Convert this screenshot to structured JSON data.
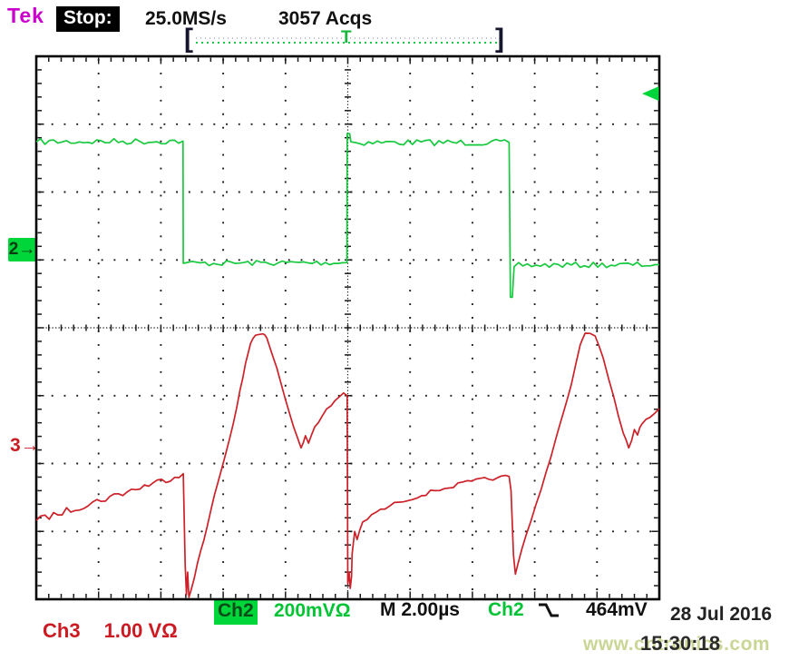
{
  "header": {
    "brand": "Tek",
    "acq_state": "Stop:",
    "sample_rate": "25.0MS/s",
    "acquisitions": "3057 Acqs"
  },
  "record_bar": {
    "left_bracket": "[",
    "right_bracket": "]",
    "trigger_mark": "T"
  },
  "markers": {
    "ch2_ground_label": "2→",
    "ch3_ground_label": "3→",
    "trigger_box_label": "T"
  },
  "readouts": {
    "ch3_channel": "Ch3",
    "ch3_scale": "1.00 VΩ",
    "ch2_channel": "Ch2",
    "ch2_scale": "200mVΩ",
    "timebase": "M 2.00µs",
    "trigger_source": "Ch2",
    "trigger_level": "464mV"
  },
  "footer": {
    "date": "28 Jul 2016",
    "time": "15:30:18",
    "watermark": "www.cntronics.com"
  },
  "colors": {
    "green": "#17c93e",
    "green_box": "#00d53a",
    "red": "#cc2128",
    "magenta": "#cc00cc",
    "grid": "#1a1a1a",
    "watermark": "#c9d695"
  },
  "chart_data": {
    "type": "line",
    "title": "Tektronix oscilloscope capture, stopped acquisition",
    "x_divisions": 10,
    "y_divisions": 8,
    "time_per_div": "2.00µs",
    "legend_position": "bottom",
    "grid": "dotted",
    "series": [
      {
        "name": "Ch2",
        "scale_per_div": "200mV",
        "color": "#17c93e",
        "ground_marker_div": 2.86,
        "description": "square wave, ~5.2µs half period, falls at 2.36 div, rises at 5.0 div (trigger), falls at 7.6 div",
        "segments": [
          {
            "n": 0.045,
            "pts": [
              [
                0,
                1.26
              ],
              [
                2.355,
                1.25
              ]
            ]
          },
          {
            "n": 0,
            "pts": [
              [
                2.355,
                1.25
              ],
              [
                2.36,
                3.05
              ]
            ]
          },
          {
            "n": 0.04,
            "pts": [
              [
                2.36,
                3.05
              ],
              [
                4.985,
                3.04
              ]
            ]
          },
          {
            "n": 0,
            "pts": [
              [
                4.985,
                3.04
              ],
              [
                4.99,
                1.14
              ],
              [
                5.03,
                1.14
              ],
              [
                5.05,
                1.26
              ]
            ]
          },
          {
            "n": 0.045,
            "pts": [
              [
                5.05,
                1.27
              ],
              [
                7.59,
                1.27
              ]
            ]
          },
          {
            "n": 0,
            "pts": [
              [
                7.59,
                1.27
              ],
              [
                7.61,
                3.55
              ],
              [
                7.64,
                3.55
              ],
              [
                7.67,
                3.1
              ]
            ]
          },
          {
            "n": 0.04,
            "pts": [
              [
                7.67,
                3.08
              ],
              [
                10,
                3.07
              ]
            ]
          }
        ]
      },
      {
        "name": "Ch3",
        "scale_per_div": "1.00 V",
        "color": "#cc2128",
        "ground_marker_div": 5.78,
        "description": "sawtooth ramp with negative spike and resonant hump each switching edge",
        "segments": [
          {
            "n": 0.05,
            "pts": [
              [
                0,
                6.84
              ],
              [
                2.36,
                6.15
              ]
            ]
          },
          {
            "n": 0,
            "pts": [
              [
                2.36,
                6.15
              ],
              [
                2.39,
                7.5
              ],
              [
                2.41,
                7.93
              ],
              [
                2.43,
                7.6
              ],
              [
                2.45,
                7.97
              ],
              [
                2.48,
                7.88
              ]
            ]
          },
          {
            "n": 0.025,
            "pts": [
              [
                2.48,
                7.88
              ],
              [
                2.59,
                7.46
              ],
              [
                2.69,
                7.13
              ],
              [
                2.81,
                6.66
              ],
              [
                2.91,
                6.3
              ],
              [
                3.04,
                5.86
              ],
              [
                3.16,
                5.42
              ],
              [
                3.27,
                4.92
              ],
              [
                3.36,
                4.52
              ],
              [
                3.44,
                4.23
              ],
              [
                3.52,
                4.11
              ],
              [
                3.64,
                4.09
              ]
            ]
          },
          {
            "n": 0.02,
            "pts": [
              [
                3.64,
                4.09
              ],
              [
                3.7,
                4.15
              ],
              [
                3.86,
                4.59
              ],
              [
                4.0,
                5.06
              ],
              [
                4.13,
                5.46
              ],
              [
                4.25,
                5.77
              ]
            ]
          },
          {
            "n": 0.03,
            "pts": [
              [
                4.25,
                5.77
              ],
              [
                4.32,
                5.59
              ],
              [
                4.37,
                5.7
              ],
              [
                4.47,
                5.46
              ],
              [
                4.59,
                5.3
              ],
              [
                4.73,
                5.15
              ],
              [
                4.86,
                5.02
              ],
              [
                4.93,
                4.96
              ]
            ]
          },
          {
            "n": 0,
            "pts": [
              [
                4.93,
                4.96
              ],
              [
                4.99,
                5.0
              ],
              [
                5.0,
                7.77
              ],
              [
                5.02,
                7.6
              ],
              [
                5.04,
                7.84
              ],
              [
                5.06,
                7.67
              ]
            ]
          },
          {
            "n": 0.03,
            "pts": [
              [
                5.06,
                7.67
              ],
              [
                5.07,
                7.33
              ],
              [
                5.11,
                7.0
              ],
              [
                5.15,
                7.12
              ],
              [
                5.24,
                6.86
              ],
              [
                5.45,
                6.72
              ],
              [
                5.82,
                6.57
              ],
              [
                6.4,
                6.4
              ],
              [
                6.99,
                6.26
              ],
              [
                7.4,
                6.21
              ],
              [
                7.59,
                6.19
              ]
            ]
          },
          {
            "n": 0,
            "pts": [
              [
                7.59,
                6.19
              ],
              [
                7.62,
                6.4
              ],
              [
                7.66,
                7.35
              ],
              [
                7.69,
                7.63
              ],
              [
                7.73,
                7.48
              ]
            ]
          },
          {
            "n": 0.02,
            "pts": [
              [
                7.73,
                7.48
              ],
              [
                7.86,
                7.06
              ],
              [
                8.1,
                6.39
              ],
              [
                8.34,
                5.63
              ],
              [
                8.59,
                4.83
              ],
              [
                8.73,
                4.25
              ],
              [
                8.81,
                4.08
              ],
              [
                8.97,
                4.12
              ]
            ]
          },
          {
            "n": 0.02,
            "pts": [
              [
                8.97,
                4.12
              ],
              [
                9.1,
                4.45
              ],
              [
                9.27,
                5.02
              ],
              [
                9.42,
                5.55
              ],
              [
                9.51,
                5.77
              ]
            ]
          },
          {
            "n": 0.035,
            "pts": [
              [
                9.51,
                5.77
              ],
              [
                9.6,
                5.5
              ],
              [
                9.65,
                5.58
              ],
              [
                9.72,
                5.42
              ],
              [
                9.85,
                5.32
              ],
              [
                10,
                5.19
              ]
            ]
          }
        ]
      }
    ],
    "trigger": {
      "source": "Ch2",
      "slope": "falling",
      "level": "464mV",
      "level_marker_div": 0.55,
      "position_div": 5.0
    }
  }
}
